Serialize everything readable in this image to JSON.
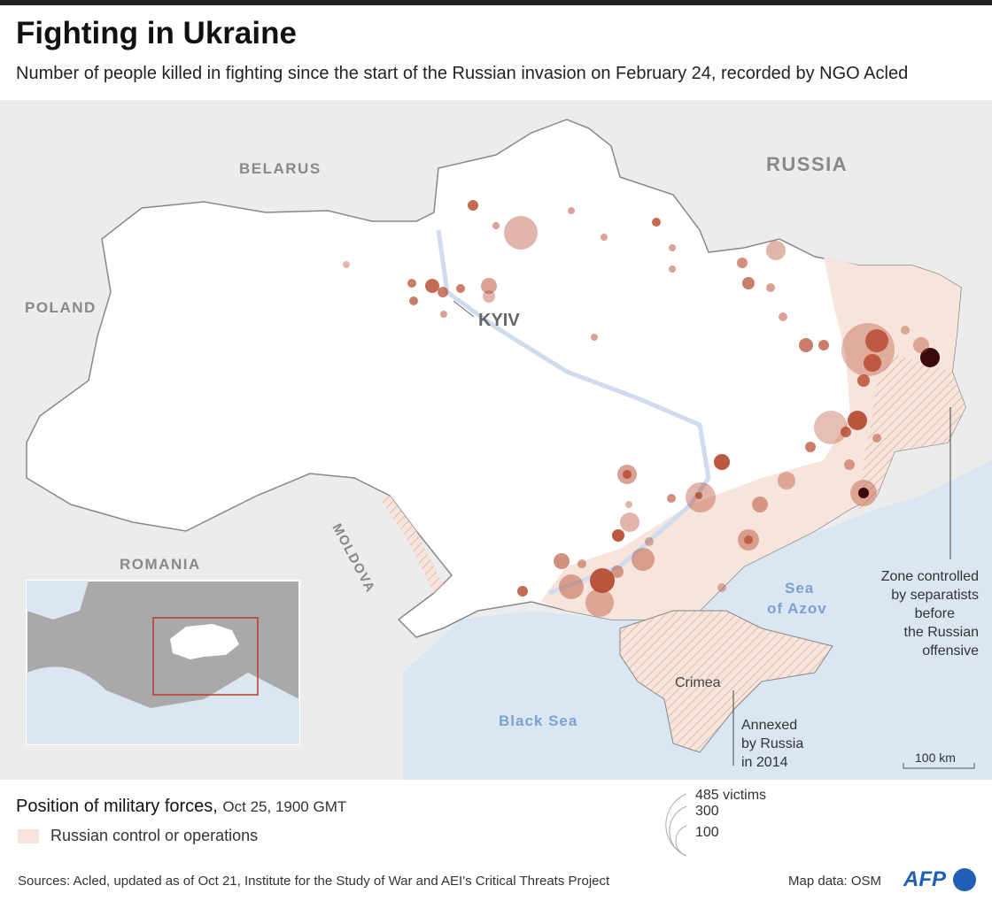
{
  "title": "Fighting in Ukraine",
  "subtitle": "Number of people killed in fighting since the start of the Russian invasion on February 24, recorded by NGO Acled",
  "map_labels": {
    "countries": [
      "BELARUS",
      "RUSSIA",
      "POLAND",
      "ROMANIA",
      "MOLDOVA"
    ],
    "city": "KYIV",
    "sea_azov": [
      "Sea",
      "of Azov"
    ],
    "black_sea": "Black Sea",
    "crimea": "Crimea",
    "crimea_note": [
      "Annexed",
      "by Russia",
      "in 2014"
    ],
    "separatist_note": [
      "Zone controlled",
      "by separatists",
      "before",
      "the Russian",
      "offensive"
    ],
    "scale": "100 km"
  },
  "legend": {
    "position_title": "Position of military forces,",
    "position_date": "Oct 25, 1900 GMT",
    "control_label": "Russian control or operations",
    "size_labels": [
      "485 victims",
      "300",
      "100"
    ]
  },
  "colors": {
    "control": "#f7e4da",
    "circle": "#b4462a",
    "dark": "#3a0a0a",
    "sea": "#dbe6f3",
    "land_other": "#ececec",
    "afp": "#1f5fb5"
  },
  "footer": {
    "sources": "Sources: Acled, updated as of Oct 21, Institute for the Study of War and AEI's Critical Threats Project",
    "map_data": "Map data: OSM",
    "logo": "AFP"
  }
}
